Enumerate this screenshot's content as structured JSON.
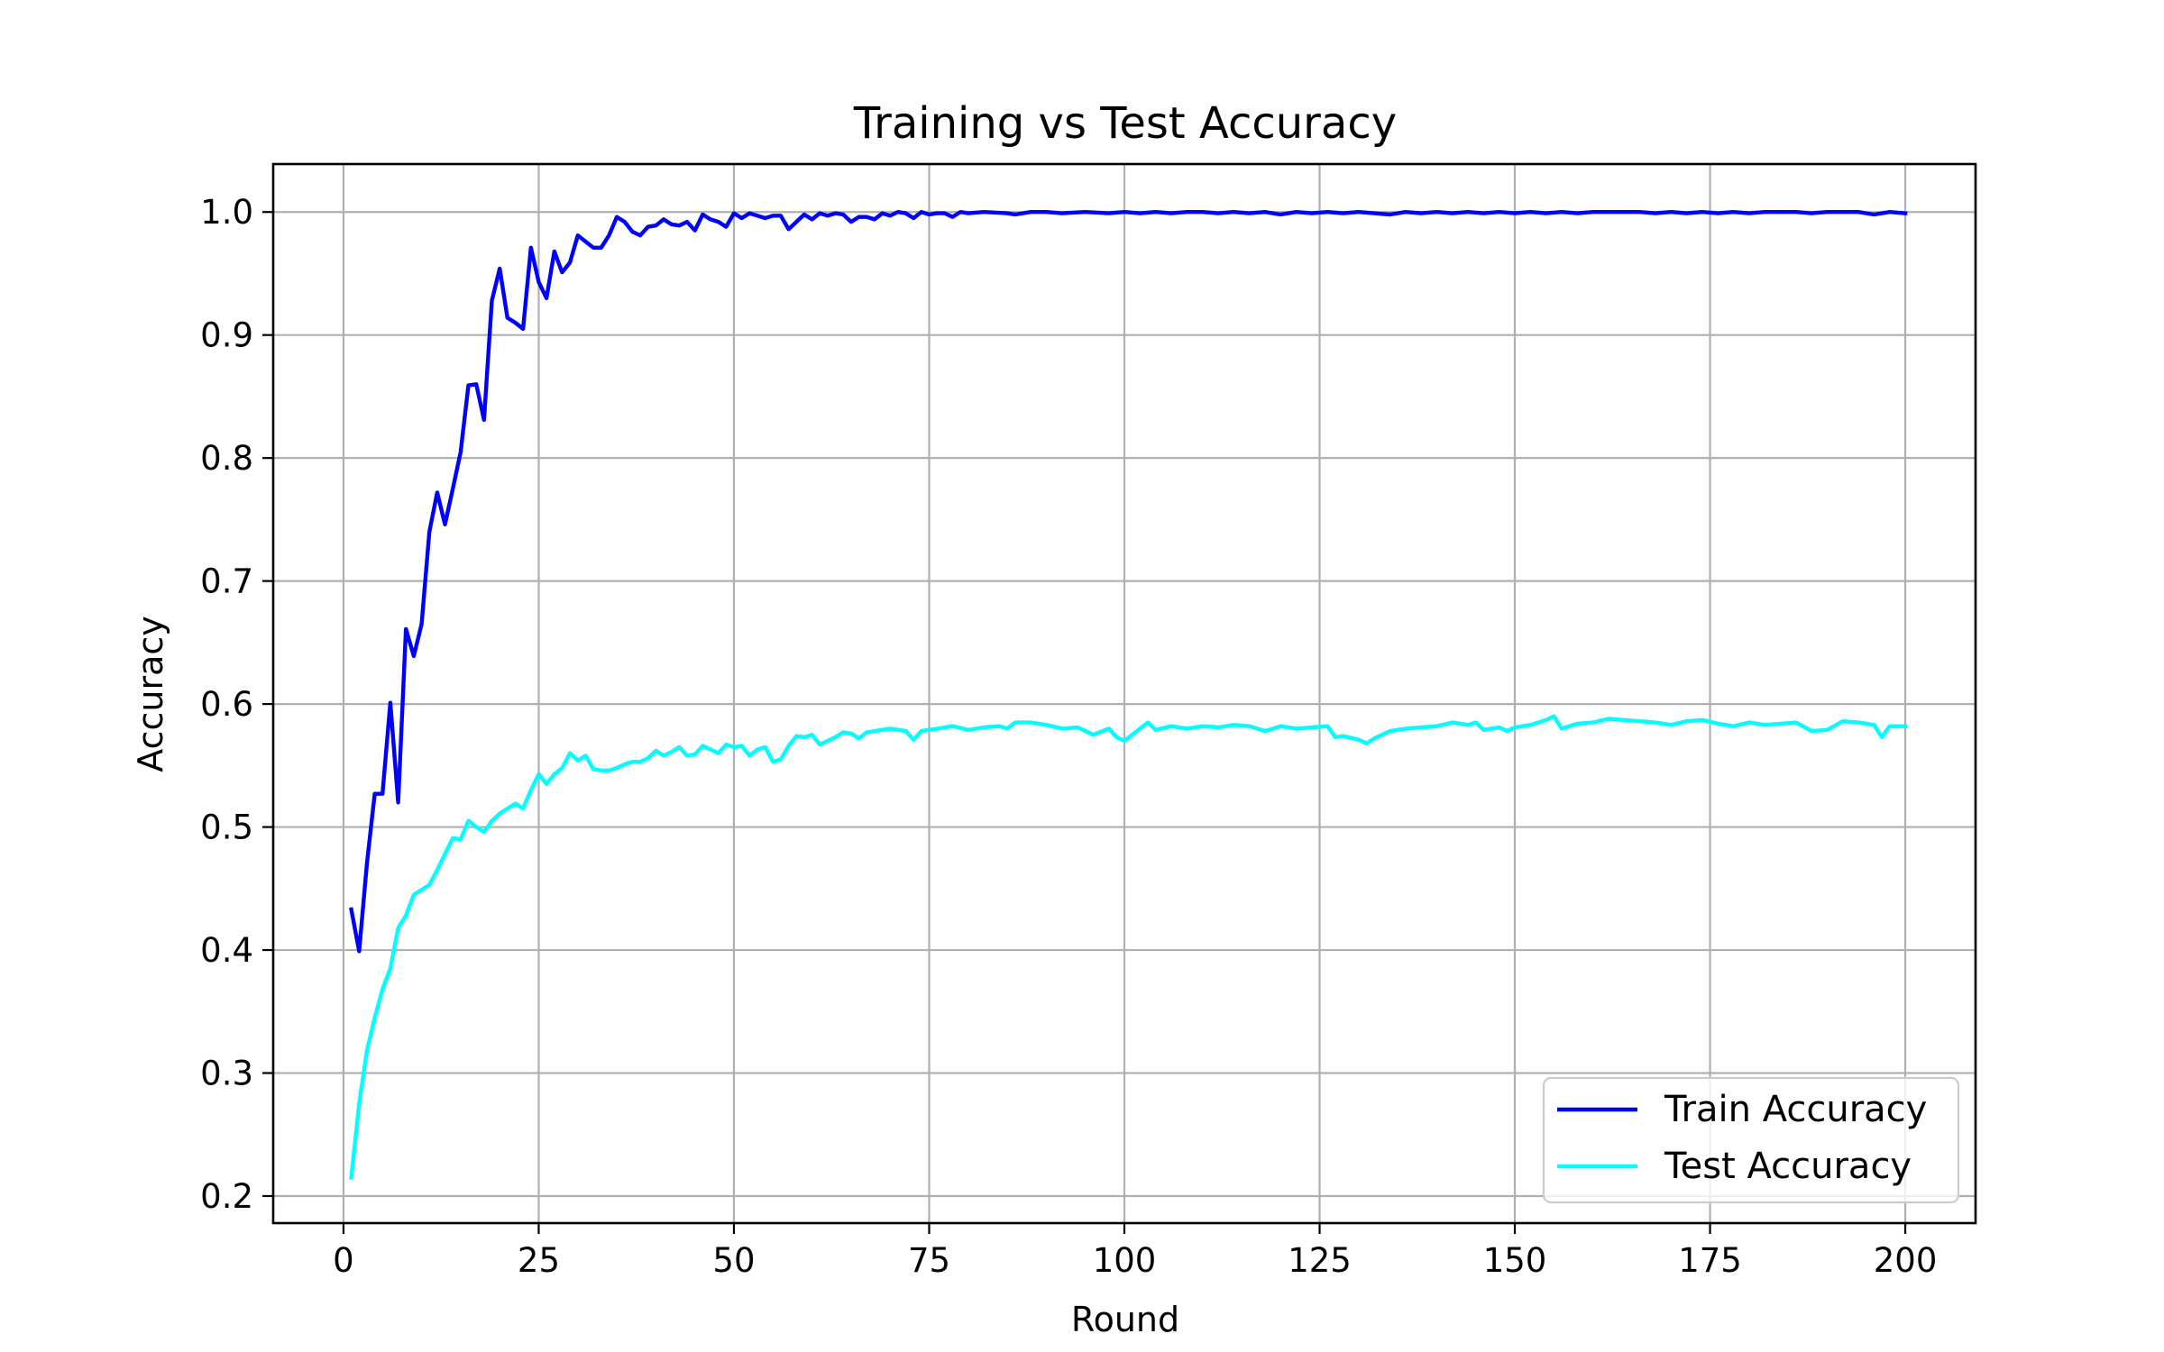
{
  "chart_data": {
    "type": "line",
    "title": "Training vs Test Accuracy",
    "xlabel": "Round",
    "ylabel": "Accuracy",
    "xlim": [
      -9,
      209
    ],
    "ylim": [
      0.178,
      1.039
    ],
    "x_ticks": [
      0,
      25,
      50,
      75,
      100,
      125,
      150,
      175,
      200
    ],
    "y_ticks": [
      0.2,
      0.3,
      0.4,
      0.5,
      0.6,
      0.7,
      0.8,
      0.9,
      1.0
    ],
    "grid": true,
    "legend_position": "lower-right",
    "series": [
      {
        "name": "Train Accuracy",
        "color": "#0000ff",
        "points": [
          [
            1,
            0.433
          ],
          [
            2,
            0.399
          ],
          [
            3,
            0.47
          ],
          [
            4,
            0.527
          ],
          [
            5,
            0.527
          ],
          [
            6,
            0.601
          ],
          [
            7,
            0.52
          ],
          [
            8,
            0.661
          ],
          [
            9,
            0.639
          ],
          [
            10,
            0.665
          ],
          [
            11,
            0.74
          ],
          [
            12,
            0.772
          ],
          [
            13,
            0.746
          ],
          [
            14,
            0.775
          ],
          [
            15,
            0.805
          ],
          [
            16,
            0.859
          ],
          [
            17,
            0.86
          ],
          [
            18,
            0.831
          ],
          [
            19,
            0.928
          ],
          [
            20,
            0.954
          ],
          [
            21,
            0.914
          ],
          [
            22,
            0.91
          ],
          [
            23,
            0.905
          ],
          [
            24,
            0.971
          ],
          [
            25,
            0.943
          ],
          [
            26,
            0.93
          ],
          [
            27,
            0.968
          ],
          [
            28,
            0.951
          ],
          [
            29,
            0.959
          ],
          [
            30,
            0.981
          ],
          [
            31,
            0.976
          ],
          [
            32,
            0.971
          ],
          [
            33,
            0.971
          ],
          [
            34,
            0.981
          ],
          [
            35,
            0.996
          ],
          [
            36,
            0.992
          ],
          [
            37,
            0.984
          ],
          [
            38,
            0.981
          ],
          [
            39,
            0.988
          ],
          [
            40,
            0.989
          ],
          [
            41,
            0.994
          ],
          [
            42,
            0.99
          ],
          [
            43,
            0.989
          ],
          [
            44,
            0.992
          ],
          [
            45,
            0.985
          ],
          [
            46,
            0.998
          ],
          [
            47,
            0.994
          ],
          [
            48,
            0.992
          ],
          [
            49,
            0.988
          ],
          [
            50,
            0.999
          ],
          [
            51,
            0.995
          ],
          [
            52,
            0.999
          ],
          [
            53,
            0.997
          ],
          [
            54,
            0.995
          ],
          [
            55,
            0.997
          ],
          [
            56,
            0.997
          ],
          [
            57,
            0.986
          ],
          [
            58,
            0.992
          ],
          [
            59,
            0.998
          ],
          [
            60,
            0.994
          ],
          [
            61,
            0.999
          ],
          [
            62,
            0.997
          ],
          [
            63,
            0.999
          ],
          [
            64,
            0.998
          ],
          [
            65,
            0.992
          ],
          [
            66,
            0.996
          ],
          [
            67,
            0.996
          ],
          [
            68,
            0.994
          ],
          [
            69,
            0.999
          ],
          [
            70,
            0.997
          ],
          [
            71,
            1.0
          ],
          [
            72,
            0.999
          ],
          [
            73,
            0.995
          ],
          [
            74,
            1.0
          ],
          [
            75,
            0.998
          ],
          [
            76,
            0.999
          ],
          [
            77,
            0.999
          ],
          [
            78,
            0.996
          ],
          [
            79,
            1.0
          ],
          [
            80,
            0.999
          ],
          [
            82,
            1.0
          ],
          [
            85,
            0.999
          ],
          [
            86,
            0.998
          ],
          [
            88,
            1.0
          ],
          [
            90,
            1.0
          ],
          [
            92,
            0.999
          ],
          [
            95,
            1.0
          ],
          [
            98,
            0.999
          ],
          [
            100,
            1.0
          ],
          [
            102,
            0.999
          ],
          [
            104,
            1.0
          ],
          [
            106,
            0.999
          ],
          [
            108,
            1.0
          ],
          [
            110,
            1.0
          ],
          [
            112,
            0.999
          ],
          [
            114,
            1.0
          ],
          [
            116,
            0.999
          ],
          [
            118,
            1.0
          ],
          [
            120,
            0.998
          ],
          [
            122,
            1.0
          ],
          [
            124,
            0.999
          ],
          [
            126,
            1.0
          ],
          [
            128,
            0.999
          ],
          [
            130,
            1.0
          ],
          [
            132,
            0.999
          ],
          [
            134,
            0.998
          ],
          [
            136,
            1.0
          ],
          [
            138,
            0.999
          ],
          [
            140,
            1.0
          ],
          [
            142,
            0.999
          ],
          [
            144,
            1.0
          ],
          [
            146,
            0.999
          ],
          [
            148,
            1.0
          ],
          [
            150,
            0.999
          ],
          [
            152,
            1.0
          ],
          [
            154,
            0.999
          ],
          [
            156,
            1.0
          ],
          [
            158,
            0.999
          ],
          [
            160,
            1.0
          ],
          [
            162,
            1.0
          ],
          [
            164,
            1.0
          ],
          [
            166,
            1.0
          ],
          [
            168,
            0.999
          ],
          [
            170,
            1.0
          ],
          [
            172,
            0.999
          ],
          [
            174,
            1.0
          ],
          [
            176,
            0.999
          ],
          [
            178,
            1.0
          ],
          [
            180,
            0.999
          ],
          [
            182,
            1.0
          ],
          [
            184,
            1.0
          ],
          [
            186,
            1.0
          ],
          [
            188,
            0.999
          ],
          [
            190,
            1.0
          ],
          [
            192,
            1.0
          ],
          [
            194,
            1.0
          ],
          [
            196,
            0.998
          ],
          [
            198,
            1.0
          ],
          [
            200,
            0.999
          ]
        ]
      },
      {
        "name": "Test Accuracy",
        "color": "#00ffff",
        "points": [
          [
            1,
            0.215
          ],
          [
            2,
            0.275
          ],
          [
            3,
            0.318
          ],
          [
            4,
            0.345
          ],
          [
            5,
            0.368
          ],
          [
            6,
            0.385
          ],
          [
            7,
            0.418
          ],
          [
            8,
            0.428
          ],
          [
            9,
            0.445
          ],
          [
            10,
            0.449
          ],
          [
            11,
            0.453
          ],
          [
            12,
            0.465
          ],
          [
            13,
            0.478
          ],
          [
            14,
            0.491
          ],
          [
            15,
            0.49
          ],
          [
            16,
            0.505
          ],
          [
            17,
            0.5
          ],
          [
            18,
            0.496
          ],
          [
            19,
            0.505
          ],
          [
            20,
            0.511
          ],
          [
            21,
            0.515
          ],
          [
            22,
            0.519
          ],
          [
            23,
            0.515
          ],
          [
            24,
            0.53
          ],
          [
            25,
            0.543
          ],
          [
            26,
            0.535
          ],
          [
            27,
            0.543
          ],
          [
            28,
            0.548
          ],
          [
            29,
            0.56
          ],
          [
            30,
            0.554
          ],
          [
            31,
            0.558
          ],
          [
            32,
            0.547
          ],
          [
            33,
            0.546
          ],
          [
            34,
            0.546
          ],
          [
            35,
            0.548
          ],
          [
            36,
            0.551
          ],
          [
            37,
            0.553
          ],
          [
            38,
            0.553
          ],
          [
            39,
            0.556
          ],
          [
            40,
            0.562
          ],
          [
            41,
            0.558
          ],
          [
            42,
            0.561
          ],
          [
            43,
            0.565
          ],
          [
            44,
            0.558
          ],
          [
            45,
            0.559
          ],
          [
            46,
            0.566
          ],
          [
            47,
            0.563
          ],
          [
            48,
            0.56
          ],
          [
            49,
            0.567
          ],
          [
            50,
            0.565
          ],
          [
            51,
            0.566
          ],
          [
            52,
            0.558
          ],
          [
            53,
            0.563
          ],
          [
            54,
            0.565
          ],
          [
            55,
            0.553
          ],
          [
            56,
            0.555
          ],
          [
            57,
            0.566
          ],
          [
            58,
            0.574
          ],
          [
            59,
            0.573
          ],
          [
            60,
            0.575
          ],
          [
            61,
            0.567
          ],
          [
            62,
            0.57
          ],
          [
            63,
            0.573
          ],
          [
            64,
            0.577
          ],
          [
            65,
            0.576
          ],
          [
            66,
            0.572
          ],
          [
            67,
            0.577
          ],
          [
            68,
            0.578
          ],
          [
            69,
            0.579
          ],
          [
            70,
            0.58
          ],
          [
            72,
            0.578
          ],
          [
            73,
            0.571
          ],
          [
            74,
            0.578
          ],
          [
            76,
            0.58
          ],
          [
            78,
            0.582
          ],
          [
            80,
            0.579
          ],
          [
            82,
            0.581
          ],
          [
            84,
            0.582
          ],
          [
            85,
            0.58
          ],
          [
            86,
            0.585
          ],
          [
            88,
            0.585
          ],
          [
            90,
            0.583
          ],
          [
            92,
            0.58
          ],
          [
            94,
            0.581
          ],
          [
            96,
            0.575
          ],
          [
            98,
            0.58
          ],
          [
            99,
            0.573
          ],
          [
            100,
            0.57
          ],
          [
            102,
            0.58
          ],
          [
            103,
            0.585
          ],
          [
            104,
            0.579
          ],
          [
            106,
            0.582
          ],
          [
            108,
            0.58
          ],
          [
            110,
            0.582
          ],
          [
            112,
            0.581
          ],
          [
            114,
            0.583
          ],
          [
            116,
            0.582
          ],
          [
            118,
            0.578
          ],
          [
            120,
            0.582
          ],
          [
            122,
            0.58
          ],
          [
            124,
            0.581
          ],
          [
            126,
            0.582
          ],
          [
            127,
            0.573
          ],
          [
            128,
            0.574
          ],
          [
            130,
            0.571
          ],
          [
            131,
            0.568
          ],
          [
            132,
            0.572
          ],
          [
            134,
            0.578
          ],
          [
            136,
            0.58
          ],
          [
            138,
            0.581
          ],
          [
            140,
            0.582
          ],
          [
            142,
            0.585
          ],
          [
            144,
            0.583
          ],
          [
            145,
            0.585
          ],
          [
            146,
            0.579
          ],
          [
            148,
            0.581
          ],
          [
            149,
            0.578
          ],
          [
            150,
            0.581
          ],
          [
            152,
            0.583
          ],
          [
            154,
            0.587
          ],
          [
            155,
            0.59
          ],
          [
            156,
            0.58
          ],
          [
            158,
            0.584
          ],
          [
            160,
            0.585
          ],
          [
            162,
            0.588
          ],
          [
            164,
            0.587
          ],
          [
            166,
            0.586
          ],
          [
            168,
            0.585
          ],
          [
            170,
            0.583
          ],
          [
            172,
            0.586
          ],
          [
            174,
            0.587
          ],
          [
            176,
            0.584
          ],
          [
            178,
            0.582
          ],
          [
            180,
            0.585
          ],
          [
            182,
            0.583
          ],
          [
            184,
            0.584
          ],
          [
            186,
            0.585
          ],
          [
            188,
            0.578
          ],
          [
            190,
            0.579
          ],
          [
            192,
            0.586
          ],
          [
            194,
            0.585
          ],
          [
            196,
            0.583
          ],
          [
            197,
            0.573
          ],
          [
            198,
            0.582
          ],
          [
            200,
            0.582
          ]
        ]
      }
    ]
  }
}
